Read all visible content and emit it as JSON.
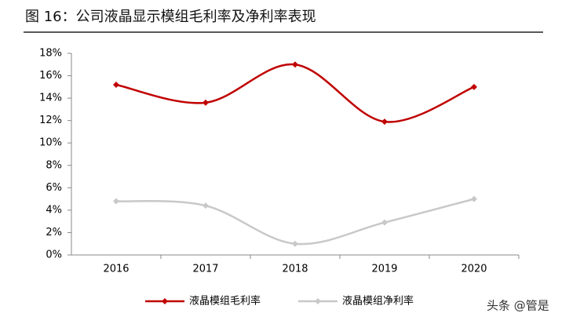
{
  "chart_data": {
    "type": "line",
    "title": "图 16：公司液晶显示模组毛利率及净利率表现",
    "categories": [
      "2016",
      "2017",
      "2018",
      "2019",
      "2020"
    ],
    "series": [
      {
        "name": "液晶模组毛利率",
        "color": "#c00000",
        "values": [
          15.2,
          13.6,
          17.0,
          11.9,
          15.0
        ]
      },
      {
        "name": "液晶模组净利率",
        "color": "#c8c8c8",
        "values": [
          4.8,
          4.4,
          1.0,
          2.9,
          5.0
        ]
      }
    ],
    "ylim": [
      0,
      18
    ],
    "yticks": [
      {
        "value": 0,
        "label": "0%"
      },
      {
        "value": 2,
        "label": "2%"
      },
      {
        "value": 4,
        "label": "4%"
      },
      {
        "value": 6,
        "label": "6%"
      },
      {
        "value": 8,
        "label": "8%"
      },
      {
        "value": 10,
        "label": "10%"
      },
      {
        "value": 12,
        "label": "12%"
      },
      {
        "value": 14,
        "label": "14%"
      },
      {
        "value": 16,
        "label": "16%"
      },
      {
        "value": 18,
        "label": "18%"
      }
    ],
    "smooth": true,
    "legend": "bottom",
    "watermark": "头条 @管是"
  }
}
